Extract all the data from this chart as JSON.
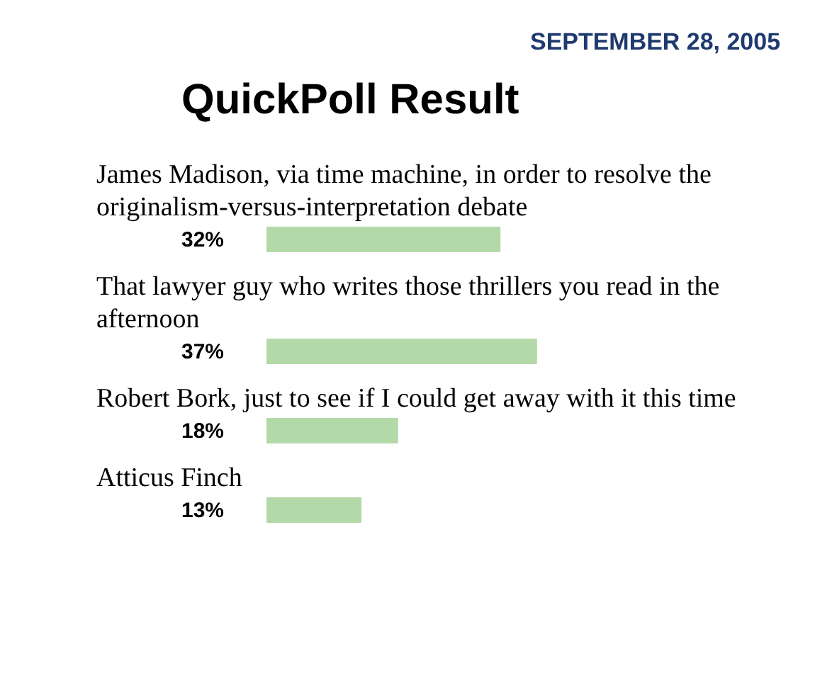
{
  "chart_data": {
    "type": "bar",
    "orientation": "horizontal",
    "title": "QuickPoll Result",
    "subtitle": "SEPTEMBER 28, 2005",
    "categories": [
      "James Madison, via time machine, in order to resolve the originalism-versus-interpretation debate",
      "That lawyer guy who writes those thrillers you read in the afternoon",
      "Robert Bork, just to see if I could get away with it this time",
      "Atticus Finch"
    ],
    "values": [
      32,
      37,
      18,
      13
    ],
    "value_labels": [
      "32%",
      "37%",
      "18%",
      "13%"
    ],
    "color": "#b3d9a9"
  }
}
